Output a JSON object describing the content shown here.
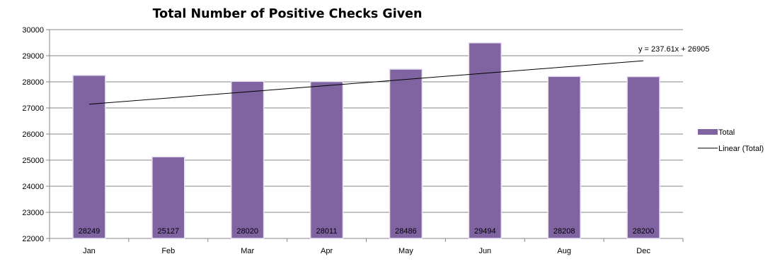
{
  "chart_data": {
    "type": "bar",
    "title": "Total Number of Positive Checks Given",
    "categories": [
      "Jan",
      "Feb",
      "Mar",
      "Apr",
      "May",
      "Jun",
      "Aug",
      "Dec"
    ],
    "series": [
      {
        "name": "Total",
        "values": [
          28249,
          25127,
          28020,
          28011,
          28486,
          29494,
          28208,
          28200
        ],
        "color": "#8064a2"
      }
    ],
    "data_labels": [
      "28249",
      "25127",
      "28020",
      "28011",
      "28486",
      "29494",
      "28208",
      "28200"
    ],
    "trendline": {
      "name": "Linear (Total)",
      "equation": "y = 237.61x + 26905",
      "slope": 237.61,
      "intercept": 26905,
      "color": "#000000"
    },
    "ylim": [
      22000,
      30000
    ],
    "yticks": [
      "22000",
      "23000",
      "24000",
      "25000",
      "26000",
      "27000",
      "28000",
      "29000",
      "30000"
    ],
    "grid": true,
    "legend": "right",
    "xlabel": "",
    "ylabel": ""
  }
}
